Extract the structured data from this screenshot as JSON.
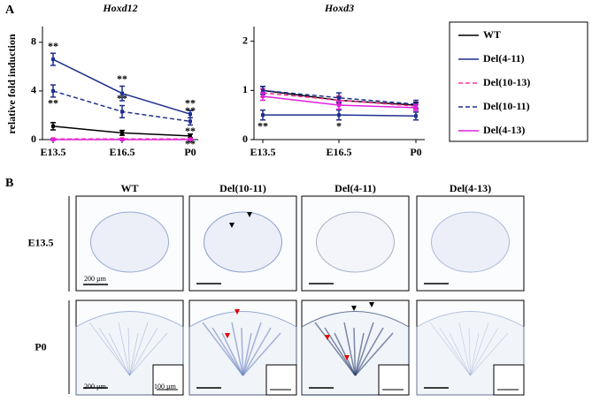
{
  "panel_labels": [
    "A",
    "B"
  ],
  "chart_data": [
    {
      "type": "line",
      "title": "Hoxd12",
      "y_label": "relative fold induction",
      "categories": [
        "E13.5",
        "E16.5",
        "P0"
      ],
      "ylim": [
        0,
        9.3
      ],
      "yticks": [
        0,
        4,
        8
      ],
      "annotations": [
        "**",
        "**",
        "**",
        "**",
        "**",
        "**",
        "**",
        "**"
      ],
      "series": [
        {
          "name": "WT",
          "color": "#000000",
          "style": "solid",
          "values": [
            1.1,
            0.55,
            0.3
          ],
          "errors": [
            0.3,
            0.2,
            0.15
          ]
        },
        {
          "name": "Del(4-11)",
          "color": "#1f2f8f",
          "style": "solid",
          "values": [
            6.6,
            3.8,
            2.1
          ],
          "errors": [
            0.5,
            0.6,
            0.3
          ]
        },
        {
          "name": "Del(10-13)",
          "color": "#ff3399",
          "style": "dashed",
          "values": [
            0.05,
            0.05,
            0.05
          ],
          "errors": [
            0.05,
            0.05,
            0.05
          ]
        },
        {
          "name": "Del(10-11)",
          "color": "#1f2f8f",
          "style": "dashed",
          "values": [
            4.0,
            2.3,
            1.5
          ],
          "errors": [
            0.5,
            0.5,
            0.3
          ]
        },
        {
          "name": "Del(4-13)",
          "color": "#e020e0",
          "style": "solid",
          "values": [
            0,
            0,
            0
          ],
          "errors": [
            0.05,
            0.05,
            0.05
          ]
        }
      ]
    },
    {
      "type": "line",
      "title": "Hoxd3",
      "categories": [
        "E13.5",
        "E16.5",
        "P0"
      ],
      "ylim": [
        0,
        2.3
      ],
      "yticks": [
        0,
        1,
        2
      ],
      "annotations": [
        "**",
        "*"
      ],
      "series": [
        {
          "color": "#000000",
          "style": "solid",
          "values": [
            1.0,
            0.8,
            0.7
          ],
          "errors": [
            0.08,
            0.08,
            0.06
          ]
        },
        {
          "color": "#1f2f8f",
          "style": "solid",
          "values": [
            0.5,
            0.5,
            0.48
          ],
          "errors": [
            0.1,
            0.1,
            0.08
          ]
        },
        {
          "color": "#ff3399",
          "style": "dashed",
          "values": [
            0.95,
            0.8,
            0.68
          ],
          "errors": [
            0.08,
            0.08,
            0.06
          ]
        },
        {
          "color": "#1f2f8f",
          "style": "dashed",
          "values": [
            1.0,
            0.85,
            0.72
          ],
          "errors": [
            0.08,
            0.1,
            0.08
          ]
        },
        {
          "color": "#e020e0",
          "style": "solid",
          "values": [
            0.88,
            0.7,
            0.65
          ],
          "errors": [
            0.08,
            0.08,
            0.06
          ]
        }
      ]
    }
  ],
  "panel_b": {
    "columns": [
      "WT",
      "Del(10-11)",
      "Del(4-11)",
      "Del(4-13)"
    ],
    "rows": [
      "E13.5",
      "P0"
    ],
    "scale_labels": [
      "200 µm",
      "200 µm",
      "100 µm"
    ]
  }
}
